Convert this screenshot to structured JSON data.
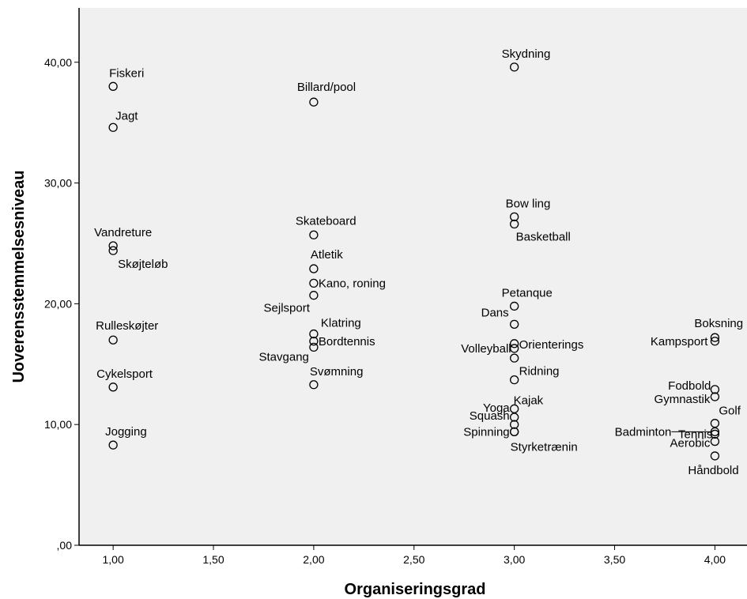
{
  "chart_data": {
    "type": "scatter",
    "xlabel": "Organiseringsgrad",
    "ylabel": "Uoverensstemmelsesniveau",
    "xlim": [
      0.83,
      4.16
    ],
    "ylim": [
      0,
      44.5
    ],
    "grid": false,
    "x_ticks": [
      {
        "value": 1.0,
        "label": "1,00"
      },
      {
        "value": 1.5,
        "label": "1,50"
      },
      {
        "value": 2.0,
        "label": "2,00"
      },
      {
        "value": 2.5,
        "label": "2,50"
      },
      {
        "value": 3.0,
        "label": "3,00"
      },
      {
        "value": 3.5,
        "label": "3,50"
      },
      {
        "value": 4.0,
        "label": "4,00"
      }
    ],
    "y_ticks": [
      {
        "value": 0,
        "label": ",00"
      },
      {
        "value": 10,
        "label": "10,00"
      },
      {
        "value": 20,
        "label": "20,00"
      },
      {
        "value": 30,
        "label": "30,00"
      },
      {
        "value": 40,
        "label": "40,00"
      }
    ],
    "points": [
      {
        "label": "Fiskeri",
        "x": 1.0,
        "y": 38.0
      },
      {
        "label": "Jagt",
        "x": 1.0,
        "y": 34.6
      },
      {
        "label": "Vandreture",
        "x": 1.0,
        "y": 24.8
      },
      {
        "label": "Skøjteløb",
        "x": 1.0,
        "y": 24.4
      },
      {
        "label": "Rulleskøjter",
        "x": 1.0,
        "y": 17.0
      },
      {
        "label": "Cykelsport",
        "x": 1.0,
        "y": 13.1
      },
      {
        "label": "Jogging",
        "x": 1.0,
        "y": 8.3
      },
      {
        "label": "Billard/pool",
        "x": 2.0,
        "y": 36.7
      },
      {
        "label": "Skateboard",
        "x": 2.0,
        "y": 25.7
      },
      {
        "label": "Atletik",
        "x": 2.0,
        "y": 22.9
      },
      {
        "label": "Kano, roning",
        "x": 2.0,
        "y": 21.7
      },
      {
        "label": "Sejlsport",
        "x": 2.0,
        "y": 20.7
      },
      {
        "label": "Klatring",
        "x": 2.0,
        "y": 17.5
      },
      {
        "label": "Bordtennis",
        "x": 2.0,
        "y": 16.9
      },
      {
        "label": "Stavgang",
        "x": 2.0,
        "y": 16.4
      },
      {
        "label": "Svømning",
        "x": 2.0,
        "y": 13.3
      },
      {
        "label": "Skydning",
        "x": 3.0,
        "y": 39.6
      },
      {
        "label": "Bow ling",
        "x": 3.0,
        "y": 27.2
      },
      {
        "label": "Basketball",
        "x": 3.0,
        "y": 26.6
      },
      {
        "label": "Petanque",
        "x": 3.0,
        "y": 19.8
      },
      {
        "label": "Dans",
        "x": 3.0,
        "y": 18.3
      },
      {
        "label": "Orienterings",
        "x": 3.0,
        "y": 16.7
      },
      {
        "label": "Volleyball",
        "x": 3.0,
        "y": 16.3
      },
      {
        "label": "",
        "x": 3.0,
        "y": 15.5
      },
      {
        "label": "Ridning",
        "x": 3.0,
        "y": 13.7
      },
      {
        "label": "Kajak",
        "x": 3.0,
        "y": 11.3
      },
      {
        "label": "Yoga",
        "x": 3.0,
        "y": 10.6
      },
      {
        "label": "Squash",
        "x": 3.0,
        "y": 10.0
      },
      {
        "label": "Spinning",
        "x": 3.0,
        "y": 9.4
      },
      {
        "label": "Styrketrænin",
        "x": 3.0,
        "y": 9.4
      },
      {
        "label": "Boksning",
        "x": 4.0,
        "y": 17.2
      },
      {
        "label": "Kampsport",
        "x": 4.0,
        "y": 16.9
      },
      {
        "label": "Fodbold",
        "x": 4.0,
        "y": 12.9
      },
      {
        "label": "Gymnastik",
        "x": 4.0,
        "y": 12.3
      },
      {
        "label": "Golf",
        "x": 4.0,
        "y": 10.1
      },
      {
        "label": "Badminton",
        "x": 4.0,
        "y": 9.4
      },
      {
        "label": "Tennis",
        "x": 4.0,
        "y": 9.2
      },
      {
        "label": "Aerobic",
        "x": 4.0,
        "y": 8.6
      },
      {
        "label": "Håndbold",
        "x": 4.0,
        "y": 7.4
      }
    ]
  },
  "colors": {
    "plot_background": "#f0f0f0",
    "marker_stroke": "#000000",
    "axis": "#000000"
  }
}
